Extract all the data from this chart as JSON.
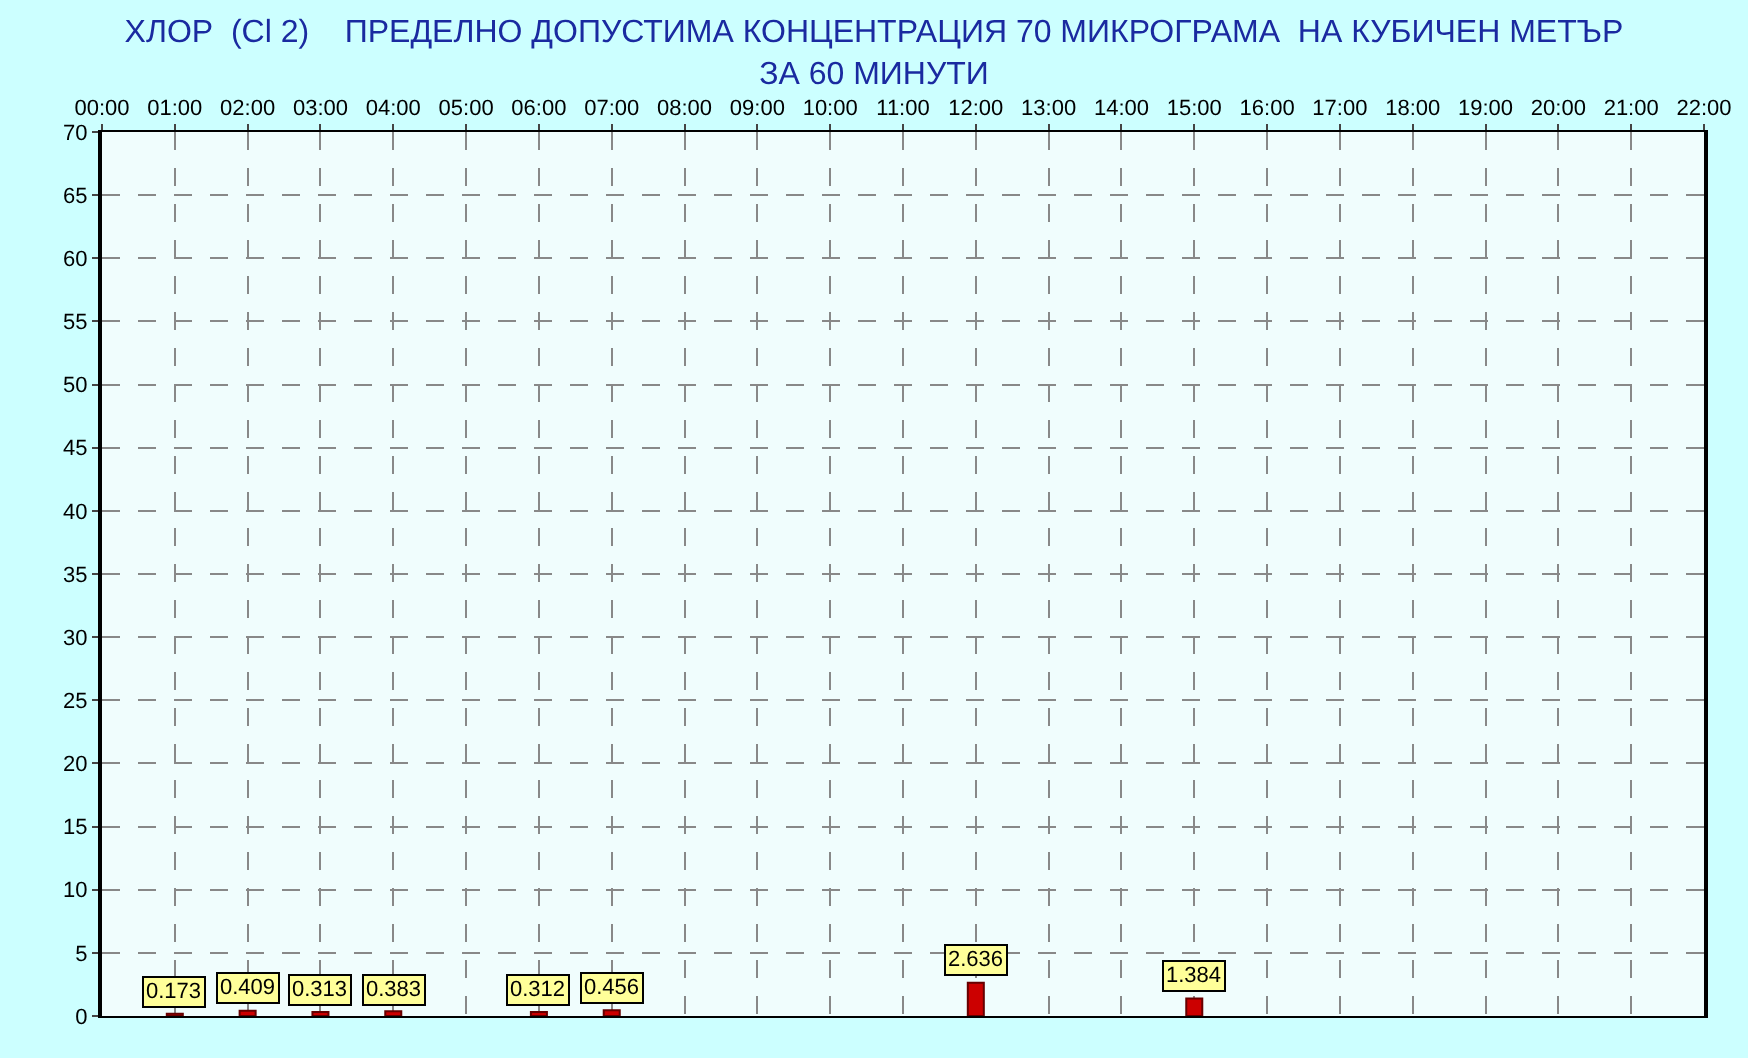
{
  "chart_data": {
    "type": "bar",
    "title": "ХЛОР  (Cl 2)    ПРЕДЕЛНО ДОПУСТИМА КОНЦЕНТРАЦИЯ 70 МИКРОГРАМА  НА КУБИЧЕН МЕТЪР",
    "subtitle": "ЗА 60 МИНУТИ",
    "x": [
      1,
      2,
      3,
      4,
      6,
      7,
      12,
      15
    ],
    "values": [
      0.173,
      0.409,
      0.313,
      0.383,
      0.312,
      0.456,
      2.636,
      1.384
    ],
    "color": "#cc0000",
    "data_labels": true,
    "xlim": [
      0,
      22
    ],
    "xticks": [
      {
        "value": 0,
        "label": "00:00"
      },
      {
        "value": 1,
        "label": "01:00"
      },
      {
        "value": 2,
        "label": "02:00"
      },
      {
        "value": 3,
        "label": "03:00"
      },
      {
        "value": 4,
        "label": "04:00"
      },
      {
        "value": 5,
        "label": "05:00"
      },
      {
        "value": 6,
        "label": "06:00"
      },
      {
        "value": 7,
        "label": "07:00"
      },
      {
        "value": 8,
        "label": "08:00"
      },
      {
        "value": 9,
        "label": "09:00"
      },
      {
        "value": 10,
        "label": "10:00"
      },
      {
        "value": 11,
        "label": "11:00"
      },
      {
        "value": 12,
        "label": "12:00"
      },
      {
        "value": 13,
        "label": "13:00"
      },
      {
        "value": 14,
        "label": "14:00"
      },
      {
        "value": 15,
        "label": "15:00"
      },
      {
        "value": 16,
        "label": "16:00"
      },
      {
        "value": 17,
        "label": "17:00"
      },
      {
        "value": 18,
        "label": "18:00"
      },
      {
        "value": 19,
        "label": "19:00"
      },
      {
        "value": 20,
        "label": "20:00"
      },
      {
        "value": 21,
        "label": "21:00"
      },
      {
        "value": 22,
        "label": "22:00"
      }
    ],
    "ylim": [
      0,
      70
    ],
    "yticks": [
      0,
      5,
      10,
      15,
      20,
      25,
      30,
      35,
      40,
      45,
      50,
      55,
      60,
      65,
      70
    ],
    "grid": true,
    "legend": false
  }
}
